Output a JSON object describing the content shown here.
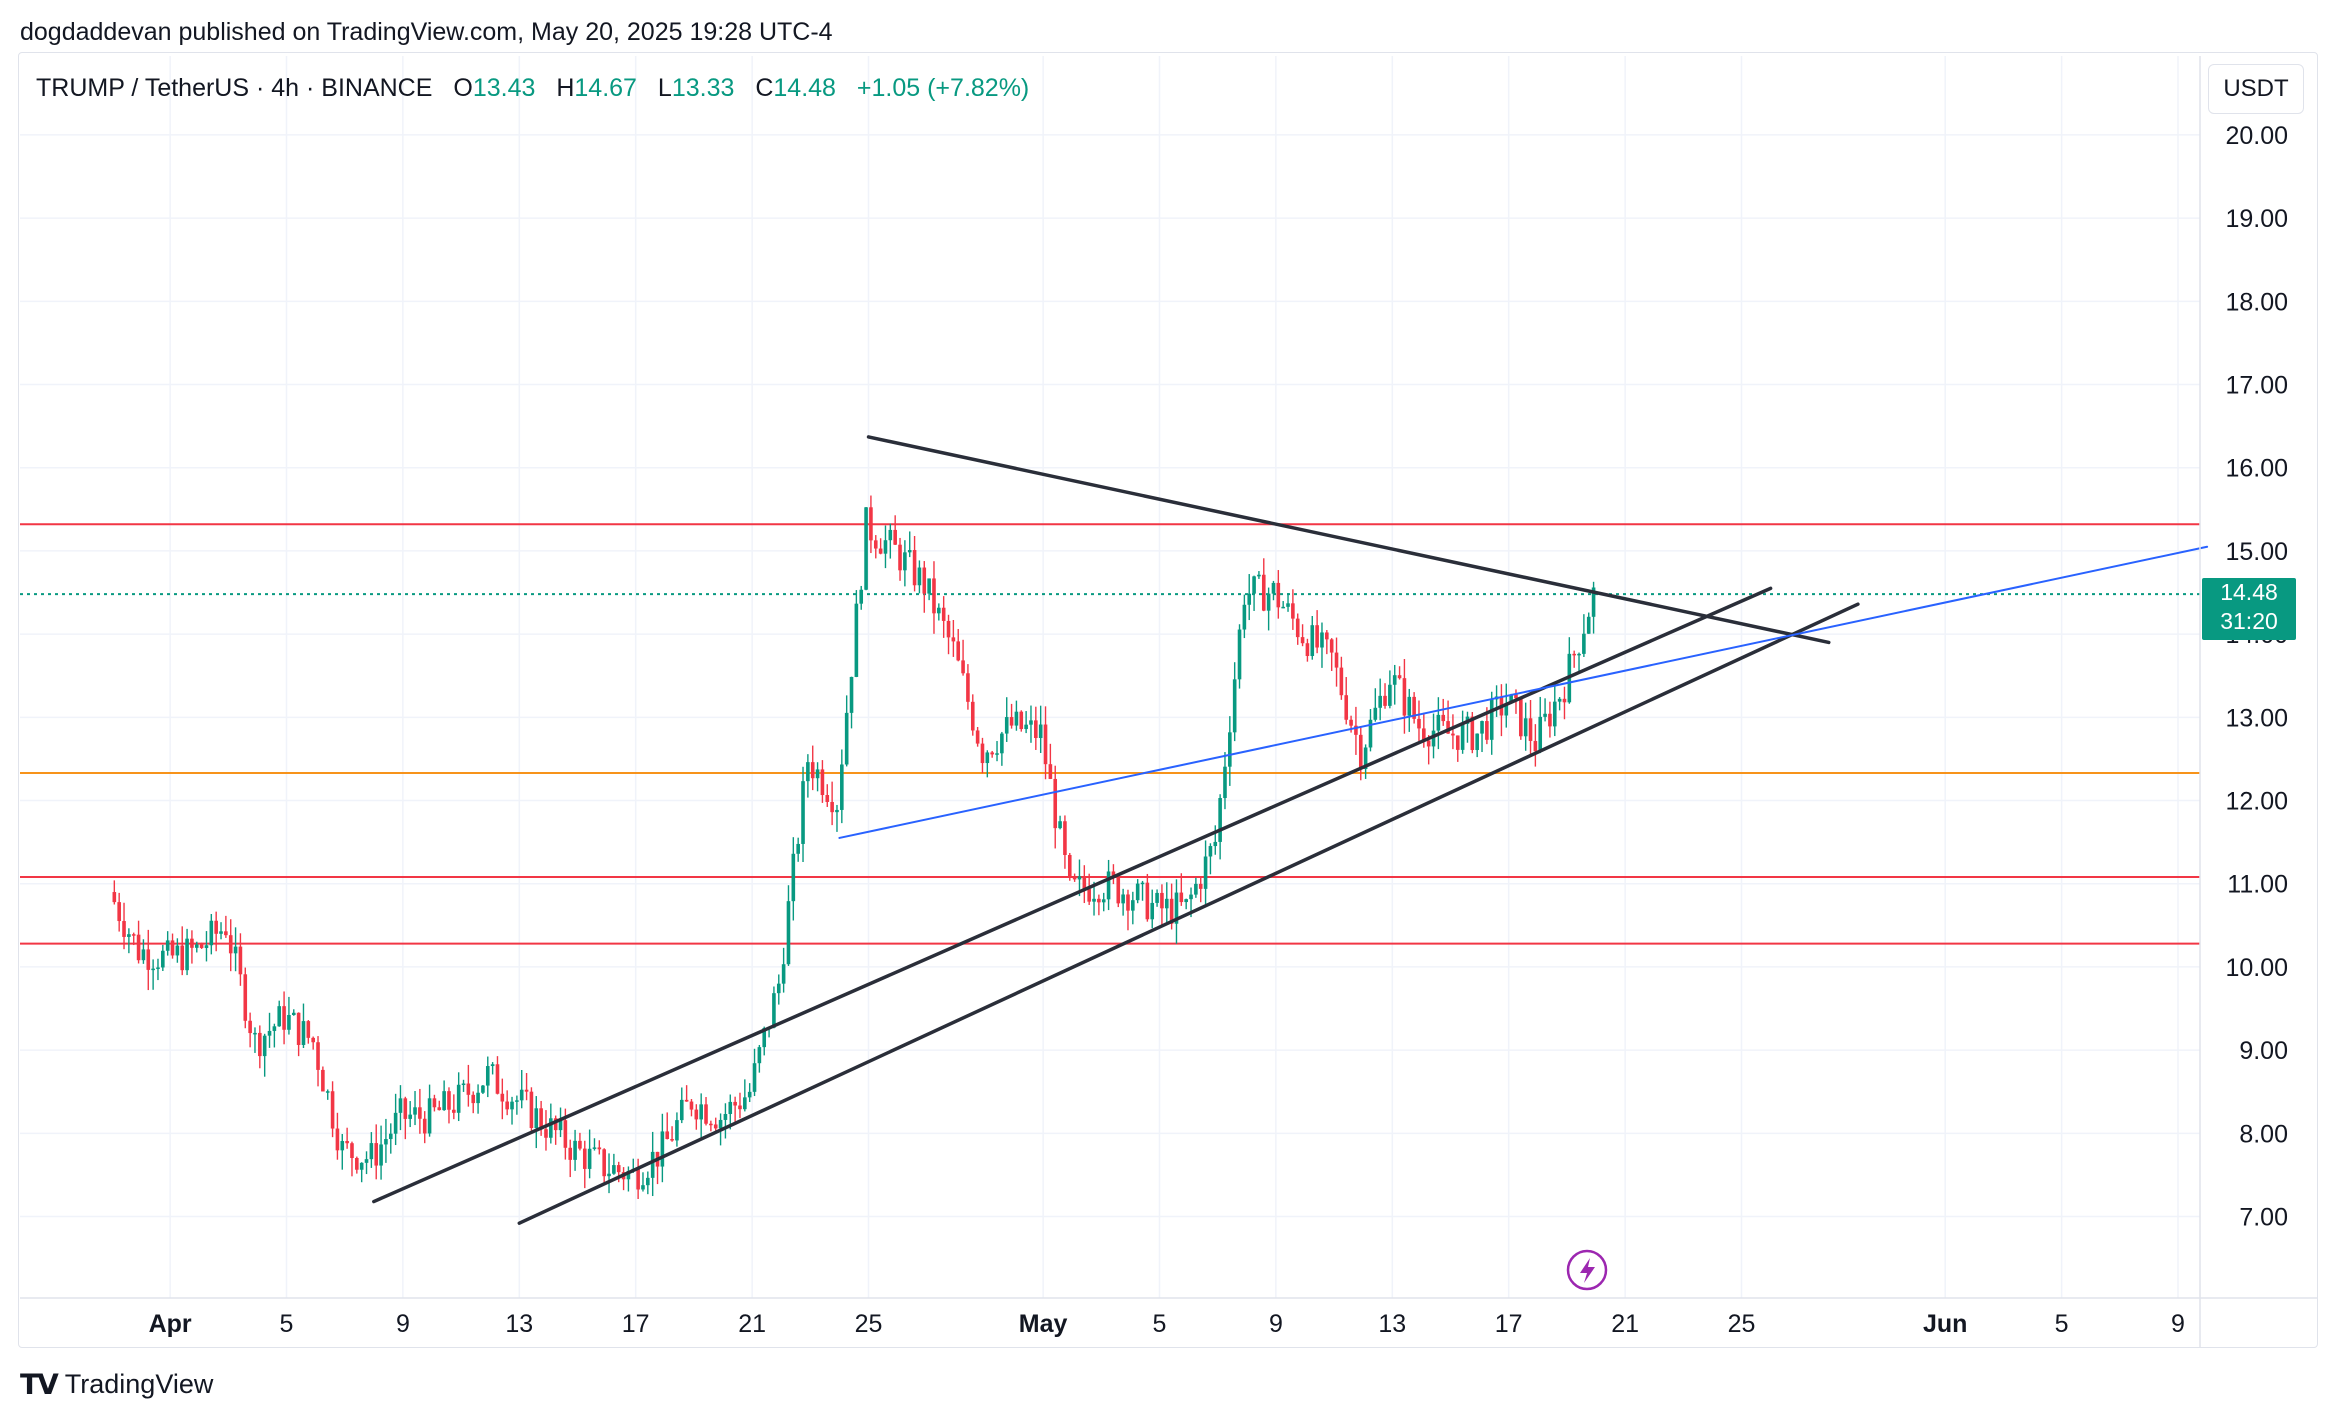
{
  "header": {
    "published": "dogdaddevan published on TradingView.com, May 20, 2025 19:28 UTC-4"
  },
  "legend": {
    "symbol": "TRUMP / TetherUS · 4h · BINANCE",
    "open_label": "O",
    "open": "13.43",
    "high_label": "H",
    "high": "14.67",
    "low_label": "L",
    "low": "13.33",
    "close_label": "C",
    "close": "14.48",
    "change": "+1.05 (+7.82%)"
  },
  "currency": "USDT",
  "last_price": {
    "price": "14.48",
    "countdown": "31:20"
  },
  "footer": {
    "brand": "TradingView",
    "logo": "tradingview-logo"
  },
  "colors": {
    "up": "#089981",
    "down": "#F23645",
    "resistance": "#F23645",
    "support": "#F7931A",
    "trendline": "#2A2E39",
    "blue_line": "#2962FF",
    "lightning": "#9C27B0"
  },
  "chart_data": {
    "type": "line",
    "ylim": [
      6.5,
      20.6
    ],
    "y_ticks": [
      "20.00",
      "19.00",
      "18.00",
      "17.00",
      "16.00",
      "15.00",
      "14.00",
      "13.00",
      "12.00",
      "11.00",
      "10.00",
      "9.00",
      "8.00",
      "7.00"
    ],
    "x_ticks": [
      "Apr",
      "5",
      "9",
      "13",
      "17",
      "21",
      "25",
      "May",
      "5",
      "9",
      "13",
      "17",
      "21",
      "25",
      "Jun",
      "5",
      "9"
    ],
    "series": [
      {
        "x": [
          "Mar 30",
          "Mar 31",
          "Apr 1",
          "Apr 2",
          "Apr 3",
          "Apr 4",
          "Apr 5",
          "Apr 6",
          "Apr 7",
          "Apr 8",
          "Apr 9",
          "Apr 10",
          "Apr 11",
          "Apr 12",
          "Apr 13",
          "Apr 14",
          "Apr 15",
          "Apr 16",
          "Apr 17",
          "Apr 18",
          "Apr 19",
          "Apr 20",
          "Apr 21",
          "Apr 22",
          "Apr 23",
          "Apr 24",
          "Apr 25",
          "Apr 26",
          "Apr 27",
          "Apr 28",
          "Apr 29",
          "Apr 30",
          "May 1",
          "May 2",
          "May 3",
          "May 4",
          "May 5",
          "May 6",
          "May 7",
          "May 8",
          "May 9",
          "May 10",
          "May 11",
          "May 12",
          "May 13",
          "May 14",
          "May 15",
          "May 16",
          "May 17",
          "May 18",
          "May 19",
          "May 20"
        ],
        "values": [
          10.9,
          10.2,
          10.1,
          10.2,
          10.5,
          9.1,
          9.4,
          9.1,
          7.8,
          7.7,
          8.2,
          8.2,
          8.4,
          8.7,
          8.4,
          8.1,
          7.8,
          7.6,
          7.5,
          7.8,
          8.4,
          8.2,
          8.5,
          9.8,
          12.5,
          12.0,
          15.3,
          15.0,
          14.6,
          13.8,
          12.6,
          12.9,
          12.8,
          10.9,
          11.0,
          10.9,
          10.7,
          10.7,
          11.5,
          14.5,
          14.5,
          14.0,
          13.7,
          12.6,
          13.5,
          12.9,
          12.8,
          12.8,
          13.2,
          12.7,
          13.4,
          14.48
        ]
      }
    ],
    "drawings": {
      "horizontal_levels": [
        15.32,
        12.33,
        11.08,
        10.28
      ],
      "upper_trendline": {
        "from": [
          "Apr 25",
          16.37
        ],
        "to": [
          "May 28",
          13.9
        ]
      },
      "channel_upper": {
        "from": [
          "Apr 8",
          7.18
        ],
        "to": [
          "May 26",
          14.55
        ]
      },
      "channel_lower": {
        "from": [
          "Apr 13",
          6.92
        ],
        "to": [
          "May 29",
          14.36
        ]
      },
      "blue_line": {
        "from": [
          "Apr 24",
          11.55
        ],
        "to": [
          "Jun 10",
          15.05
        ]
      },
      "last_price_line": 14.48
    }
  }
}
